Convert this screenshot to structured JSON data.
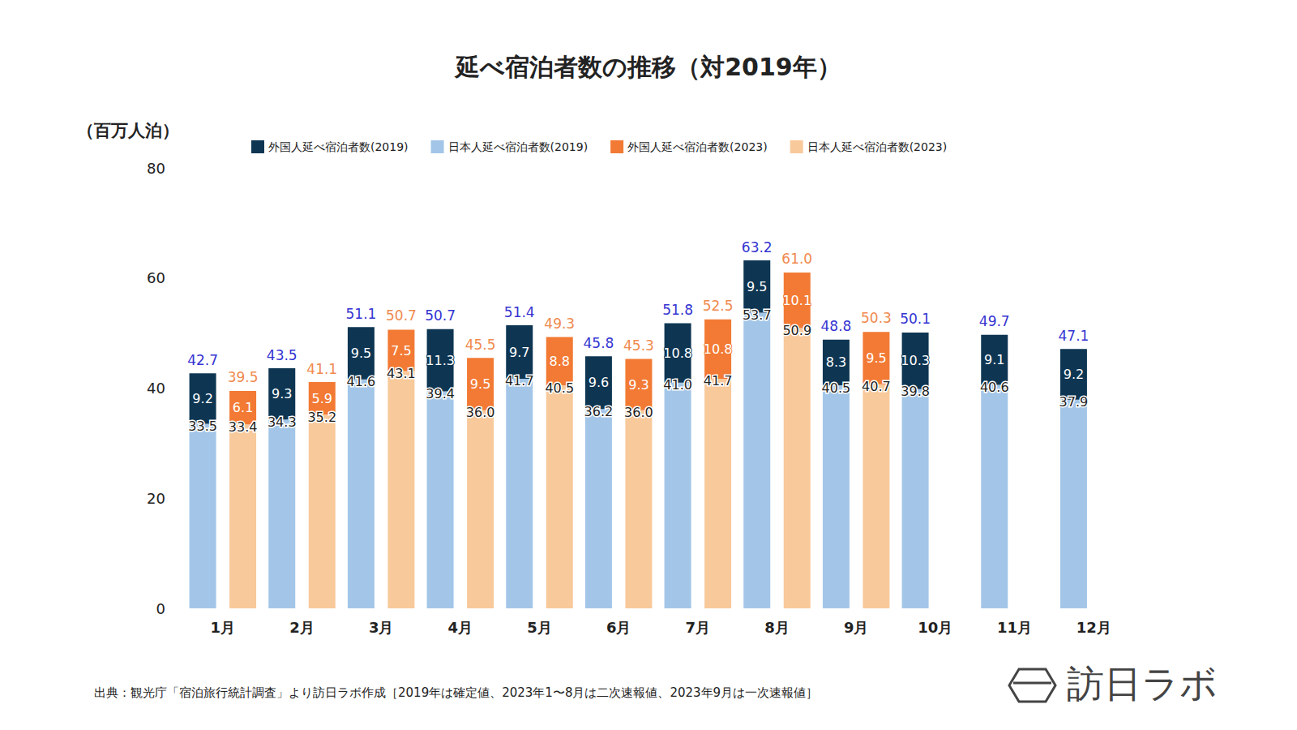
{
  "chart_data": {
    "type": "bar",
    "title": "延べ宿泊者数の推移（対2019年）",
    "y_label": "（百万人泊）",
    "source": "出典：観光庁「宿泊旅行統計調査」より訪日ラボ作成［2019年は確定値、2023年1〜8月は二次速報値、2023年9月は一次速報値］",
    "logo": "訪日ラボ",
    "stacked": true,
    "grid": false,
    "data_labels": true,
    "legend": "top",
    "ylim": [
      0,
      80
    ],
    "yticks": [
      0,
      20,
      40,
      60,
      80
    ],
    "categories": [
      "1月",
      "2月",
      "3月",
      "4月",
      "5月",
      "6月",
      "7月",
      "8月",
      "9月",
      "10月",
      "11月",
      "12月"
    ],
    "stacks": [
      {
        "series": [
          {
            "name": "日本人延べ宿泊者数(2019)",
            "color": "#a3c6e8",
            "values": [
              33.5,
              34.3,
              41.6,
              39.4,
              41.7,
              36.2,
              41.0,
              53.7,
              40.5,
              39.8,
              40.6,
              37.9
            ],
            "value_labels": [
              "33.5",
              "34.3",
              "41.6",
              "39.4",
              "41.7",
              "36.2",
              "41.0",
              "53.7",
              "40.5",
              "39.8",
              "40.6",
              "37.9"
            ]
          },
          {
            "name": "外国人延べ宿泊者数(2019)",
            "color": "#0e3653",
            "values": [
              9.2,
              9.3,
              9.5,
              11.3,
              9.7,
              9.6,
              10.8,
              9.5,
              8.3,
              10.3,
              9.1,
              9.2
            ],
            "value_labels": [
              "9.2",
              "9.3",
              "9.5",
              "11.3",
              "9.7",
              "9.6",
              "10.8",
              "9.5",
              "8.3",
              "10.3",
              "9.1",
              "9.2"
            ]
          }
        ],
        "total": {
          "color": "#3434d2",
          "values": [
            42.7,
            43.5,
            51.1,
            50.7,
            51.4,
            45.8,
            51.8,
            63.2,
            48.8,
            50.1,
            49.7,
            47.1
          ],
          "value_labels": [
            "42.7",
            "43.5",
            "51.1",
            "50.7",
            "51.4",
            "45.8",
            "51.8",
            "63.2",
            "48.8",
            "50.1",
            "49.7",
            "47.1"
          ]
        }
      },
      {
        "series": [
          {
            "name": "日本人延べ宿泊者数(2023)",
            "color": "#f8c99b",
            "values": [
              33.4,
              35.2,
              43.1,
              36.0,
              40.5,
              36.0,
              41.7,
              50.9,
              40.7,
              null,
              null,
              null
            ],
            "value_labels": [
              "33.4",
              "35.2",
              "43.1",
              "36.0",
              "40.5",
              "36.0",
              "41.7",
              "50.9",
              "40.7",
              null,
              null,
              null
            ]
          },
          {
            "name": "外国人延べ宿泊者数(2023)",
            "color": "#f27a34",
            "values": [
              6.1,
              5.9,
              7.5,
              9.5,
              8.8,
              9.3,
              10.8,
              10.1,
              9.5,
              null,
              null,
              null
            ],
            "value_labels": [
              "6.1",
              "5.9",
              "7.5",
              "9.5",
              "8.8",
              "9.3",
              "10.8",
              "10.1",
              "9.5",
              null,
              null,
              null
            ]
          }
        ],
        "total": {
          "color": "#f08a4e",
          "values": [
            39.5,
            41.1,
            50.7,
            45.5,
            49.3,
            45.3,
            52.5,
            61.0,
            50.3,
            null,
            null,
            null
          ],
          "value_labels": [
            "39.5",
            "41.1",
            "50.7",
            "45.5",
            "49.3",
            "45.3",
            "52.5",
            "61.0",
            "50.3",
            null,
            null,
            null
          ]
        }
      }
    ]
  }
}
